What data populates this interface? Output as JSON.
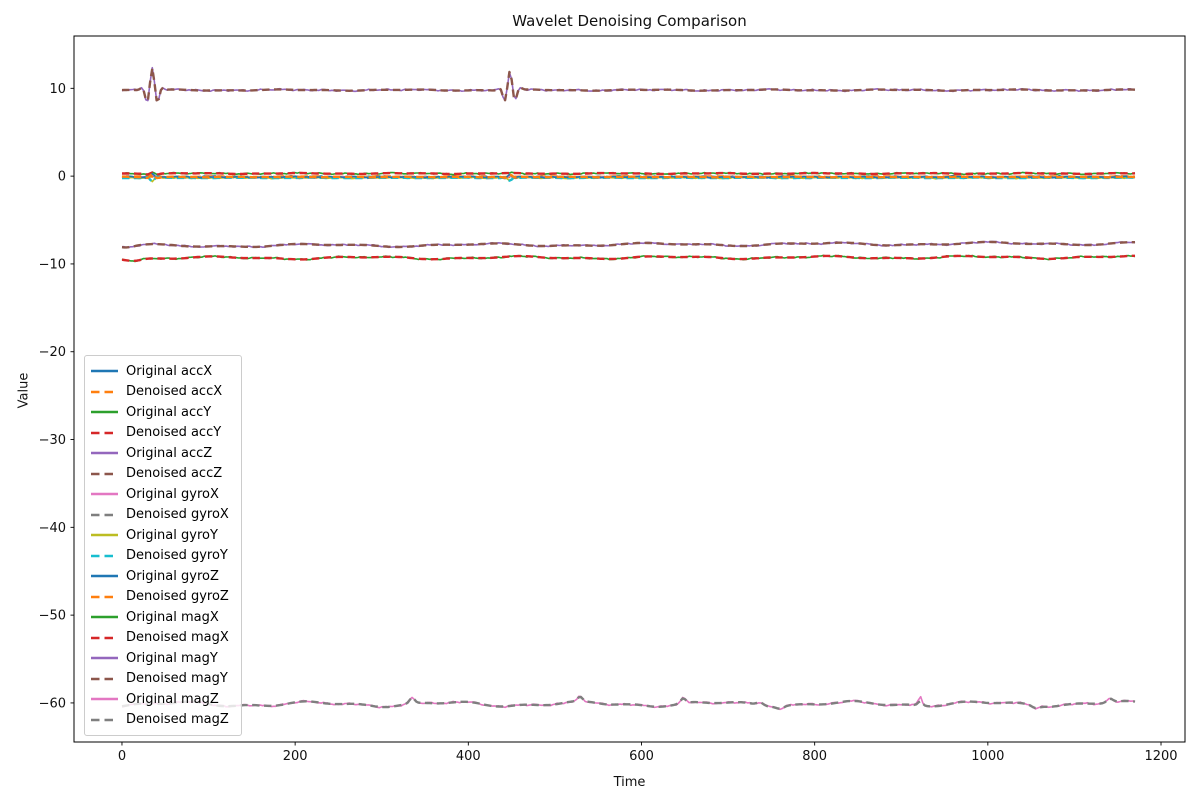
{
  "chart_data": {
    "type": "line",
    "title": "Wavelet Denoising Comparison",
    "xlabel": "Time",
    "ylabel": "Value",
    "xlim": [
      -55.4,
      1227.7
    ],
    "ylim": [
      -64.45,
      15.96
    ],
    "xticks": [
      0,
      200,
      400,
      600,
      800,
      1000,
      1200
    ],
    "yticks": [
      10,
      0,
      -10,
      -20,
      -30,
      -40,
      -50,
      -60
    ],
    "x_range": [
      0,
      1170
    ],
    "grid": false,
    "legend_position": "center-left",
    "frame_color": "#000000",
    "legend_border_color": "#cccccc",
    "legend_background": "rgba(255,255,255,0.8)",
    "legend": {
      "items": [
        {
          "label": "Original accX",
          "color": "#1f77b4",
          "dash": false
        },
        {
          "label": "Denoised accX",
          "color": "#ff7f0e",
          "dash": true
        },
        {
          "label": "Original accY",
          "color": "#2ca02c",
          "dash": false
        },
        {
          "label": "Denoised accY",
          "color": "#d62728",
          "dash": true
        },
        {
          "label": "Original accZ",
          "color": "#9467bd",
          "dash": false
        },
        {
          "label": "Denoised accZ",
          "color": "#8c564b",
          "dash": true
        },
        {
          "label": "Original gyroX",
          "color": "#e377c2",
          "dash": false
        },
        {
          "label": "Denoised gyroX",
          "color": "#7f7f7f",
          "dash": true
        },
        {
          "label": "Original gyroY",
          "color": "#bcbd22",
          "dash": false
        },
        {
          "label": "Denoised gyroY",
          "color": "#17becf",
          "dash": true
        },
        {
          "label": "Original gyroZ",
          "color": "#1f77b4",
          "dash": false
        },
        {
          "label": "Denoised gyroZ",
          "color": "#ff7f0e",
          "dash": true
        },
        {
          "label": "Original magX",
          "color": "#2ca02c",
          "dash": false
        },
        {
          "label": "Denoised magX",
          "color": "#d62728",
          "dash": true
        },
        {
          "label": "Original magY",
          "color": "#9467bd",
          "dash": false
        },
        {
          "label": "Denoised magY",
          "color": "#8c564b",
          "dash": true
        },
        {
          "label": "Original magZ",
          "color": "#e377c2",
          "dash": false
        },
        {
          "label": "Denoised magZ",
          "color": "#7f7f7f",
          "dash": true
        }
      ]
    },
    "signals": [
      {
        "name": "accX",
        "seed": 11,
        "baseline": -0.07,
        "trend": 0.0,
        "noise": 0.045,
        "wander": [
          0.03,
          95
        ],
        "spikes": [],
        "colors": {
          "original": "#1f77b4",
          "denoised": "#ff7f0e"
        }
      },
      {
        "name": "accY",
        "seed": 22,
        "baseline": 0.3,
        "trend": 0.0,
        "noise": 0.045,
        "wander": [
          0.035,
          120
        ],
        "spikes": [
          {
            "t": 35,
            "a": 0.15,
            "s": 8,
            "p": 14
          }
        ],
        "colors": {
          "original": "#2ca02c",
          "denoised": "#d62728"
        }
      },
      {
        "name": "accZ",
        "seed": 33,
        "baseline": 9.8,
        "trend": 0.0,
        "noise": 0.05,
        "wander": [
          0.05,
          140
        ],
        "spikes": [
          {
            "t": 35,
            "a": 2.45,
            "s": 8.5,
            "p": 13.5
          },
          {
            "t": 448,
            "a": 2.1,
            "s": 8.5,
            "p": 13.5
          }
        ],
        "colors": {
          "original": "#9467bd",
          "denoised": "#8c564b"
        }
      },
      {
        "name": "gyroX",
        "seed": 44,
        "baseline": -0.13,
        "trend": 0.0,
        "noise": 0.035,
        "wander": [
          0.02,
          75
        ],
        "spikes": [
          {
            "t": 35,
            "a": 0.3,
            "s": 6,
            "p": 15
          },
          {
            "t": 448,
            "a": 0.25,
            "s": 6,
            "p": 15
          }
        ],
        "colors": {
          "original": "#e377c2",
          "denoised": "#7f7f7f"
        }
      },
      {
        "name": "gyroY",
        "seed": 55,
        "baseline": -0.2,
        "trend": 0.0,
        "noise": 0.035,
        "wander": [
          0.02,
          85
        ],
        "spikes": [
          {
            "t": 35,
            "a": -0.45,
            "s": 6,
            "p": 15
          },
          {
            "t": 448,
            "a": -0.3,
            "s": 6,
            "p": 15
          }
        ],
        "colors": {
          "original": "#bcbd22",
          "denoised": "#17becf"
        }
      },
      {
        "name": "gyroZ",
        "seed": 66,
        "baseline": -0.1,
        "trend": 0.0,
        "noise": 0.04,
        "wander": [
          0.025,
          65
        ],
        "spikes": [
          {
            "t": 35,
            "a": 0.35,
            "s": 6,
            "p": 15
          },
          {
            "t": 448,
            "a": 0.3,
            "s": 6,
            "p": 15
          }
        ],
        "colors": {
          "original": "#1f77b4",
          "denoised": "#ff7f0e"
        }
      },
      {
        "name": "magX",
        "seed": 77,
        "baseline": -9.33,
        "trend": 0.1,
        "noise": 0.045,
        "wander": [
          0.12,
          175
        ],
        "spikes": [
          {
            "t": 14,
            "a": -0.22,
            "s": 11
          }
        ],
        "colors": {
          "original": "#2ca02c",
          "denoised": "#d62728"
        }
      },
      {
        "name": "magY",
        "seed": 88,
        "baseline": -7.95,
        "trend": 0.3,
        "noise": 0.045,
        "wander": [
          0.13,
          195
        ],
        "spikes": [
          {
            "t": 6,
            "a": -0.2,
            "s": 12
          }
        ],
        "colors": {
          "original": "#9467bd",
          "denoised": "#8c564b"
        }
      },
      {
        "name": "magZ",
        "seed": 99,
        "baseline": -60.15,
        "trend": 0.05,
        "noise": 0.055,
        "wander": [
          0.22,
          155
        ],
        "spikes": [
          {
            "t": 335,
            "a": 0.65,
            "s": 4
          },
          {
            "t": 529,
            "a": 0.5,
            "s": 4
          },
          {
            "t": 648,
            "a": 0.55,
            "s": 4
          },
          {
            "t": 737,
            "a": 0.35,
            "s": 5
          },
          {
            "t": 922,
            "a": 0.5,
            "s": 3.5
          },
          {
            "t": 1141,
            "a": 0.45,
            "s": 5
          },
          {
            "t": 760,
            "a": -0.25,
            "s": 6
          },
          {
            "t": 1055,
            "a": -0.28,
            "s": 6
          }
        ],
        "orig_spikes": [
          {
            "t": 922,
            "a": 0.55,
            "s": 2.5
          }
        ],
        "colors": {
          "original": "#e377c2",
          "denoised": "#7f7f7f"
        }
      }
    ]
  }
}
